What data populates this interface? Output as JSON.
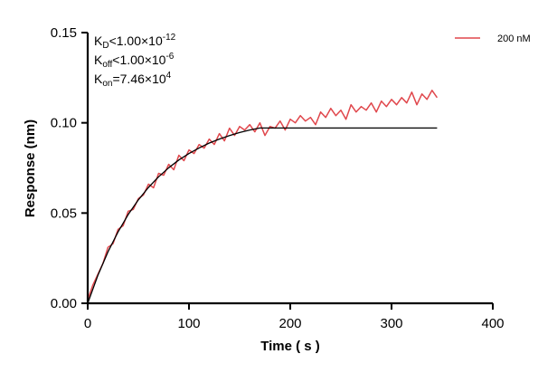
{
  "chart_data": {
    "type": "line",
    "title": "",
    "xlabel": "Time ( s )",
    "ylabel": "Response (nm)",
    "xlim": [
      0,
      400
    ],
    "ylim": [
      0,
      0.15
    ],
    "xticks": [
      "0",
      "100",
      "200",
      "300",
      "400"
    ],
    "yticks": [
      "0.00",
      "0.05",
      "0.10",
      "0.15"
    ],
    "grid": false,
    "legend_position": "top-right",
    "annotations": {
      "kd": {
        "base": "K",
        "sub": "D",
        "rel": "<1.00×10",
        "exp": "-12"
      },
      "koff": {
        "base": "K",
        "sub": "off",
        "rel": "<1.00×10",
        "exp": "-6"
      },
      "kon": {
        "base": "K",
        "sub": "on",
        "rel": "=7.46×10",
        "exp": "4"
      }
    },
    "series": [
      {
        "name": "200 nM",
        "color": "#e0474c",
        "x": [
          0,
          5,
          10,
          15,
          20,
          25,
          30,
          35,
          40,
          45,
          50,
          55,
          60,
          65,
          70,
          75,
          80,
          85,
          90,
          95,
          100,
          105,
          110,
          115,
          120,
          125,
          130,
          135,
          140,
          145,
          150,
          155,
          160,
          165,
          170,
          175,
          180,
          185,
          190,
          195,
          200,
          205,
          210,
          215,
          220,
          225,
          230,
          235,
          240,
          245,
          250,
          255,
          260,
          265,
          270,
          275,
          280,
          285,
          290,
          295,
          300,
          305,
          310,
          315,
          320,
          325,
          330,
          335,
          340,
          345
        ],
        "y": [
          0.002,
          0.01,
          0.016,
          0.022,
          0.031,
          0.033,
          0.041,
          0.043,
          0.051,
          0.052,
          0.058,
          0.06,
          0.066,
          0.064,
          0.072,
          0.071,
          0.077,
          0.074,
          0.082,
          0.079,
          0.085,
          0.083,
          0.088,
          0.086,
          0.091,
          0.088,
          0.094,
          0.09,
          0.097,
          0.093,
          0.098,
          0.096,
          0.099,
          0.095,
          0.1,
          0.093,
          0.098,
          0.097,
          0.101,
          0.096,
          0.102,
          0.1,
          0.104,
          0.101,
          0.103,
          0.099,
          0.106,
          0.103,
          0.108,
          0.104,
          0.107,
          0.102,
          0.11,
          0.106,
          0.109,
          0.107,
          0.111,
          0.106,
          0.112,
          0.109,
          0.113,
          0.11,
          0.114,
          0.111,
          0.117,
          0.11,
          0.116,
          0.113,
          0.118,
          0.114
        ]
      },
      {
        "role": "fit",
        "color": "#000000",
        "x": [
          0,
          10,
          20,
          30,
          40,
          50,
          60,
          70,
          80,
          90,
          100,
          110,
          120,
          130,
          140,
          150,
          160,
          170,
          345
        ],
        "y": [
          0,
          0.0154,
          0.0285,
          0.0396,
          0.0492,
          0.0573,
          0.0642,
          0.0701,
          0.0751,
          0.0794,
          0.083,
          0.0861,
          0.0888,
          0.091,
          0.0929,
          0.0946,
          0.096,
          0.0971,
          0.0971
        ]
      }
    ]
  }
}
